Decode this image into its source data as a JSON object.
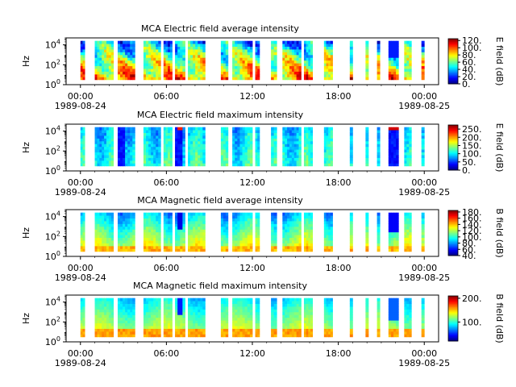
{
  "colormap_name": "jet",
  "chart_data": [
    {
      "type": "heatmap",
      "title": "MCA  Electric field average intensity",
      "ylabel": "Hz",
      "colorbar_label": "E field (dB)",
      "colorbar_ticks": [
        "120.",
        "100.",
        "80.",
        "60.",
        "40.",
        "20.",
        "0."
      ],
      "colorbar_range": [
        0,
        125
      ],
      "x_ticks": [
        {
          "time": "00:00",
          "date": "1989-08-24"
        },
        {
          "time": "06:00",
          "date": ""
        },
        {
          "time": "12:00",
          "date": ""
        },
        {
          "time": "18:00",
          "date": ""
        },
        {
          "time": "00:00",
          "date": "1989-08-25"
        }
      ],
      "xlim_hours": [
        -1,
        25
      ],
      "y_ticks": [
        "10^4",
        "10^2",
        "10^0"
      ],
      "ylim_log10": [
        0,
        4.7
      ],
      "data_band_log10": [
        0.5,
        4.4
      ],
      "style": "avg_e",
      "segments": [
        [
          0,
          0.3
        ],
        [
          1.0,
          2.3
        ],
        [
          2.6,
          3.8
        ],
        [
          4.4,
          5.6
        ],
        [
          5.8,
          6.4
        ],
        [
          6.6,
          7.3
        ],
        [
          7.5,
          8.7
        ],
        [
          9.8,
          10.3
        ],
        [
          10.6,
          12.0
        ],
        [
          12.2,
          12.5
        ],
        [
          13.3,
          13.7
        ],
        [
          14.1,
          15.4
        ],
        [
          15.6,
          16.2
        ],
        [
          17.0,
          17.6
        ],
        [
          18.8,
          19.0
        ],
        [
          19.9,
          20.1
        ],
        [
          20.7,
          20.9
        ],
        [
          21.5,
          22.2
        ],
        [
          22.6,
          23.1
        ],
        [
          23.8,
          24.0
        ]
      ]
    },
    {
      "type": "heatmap",
      "title": "MCA  Electric field maximum intensity",
      "ylabel": "Hz",
      "colorbar_label": "E field (dB)",
      "colorbar_ticks": [
        "250.",
        "200.",
        "150.",
        "100.",
        "50.",
        "0."
      ],
      "colorbar_range": [
        0,
        275
      ],
      "x_ticks": [
        {
          "time": "00:00",
          "date": "1989-08-24"
        },
        {
          "time": "06:00",
          "date": ""
        },
        {
          "time": "12:00",
          "date": ""
        },
        {
          "time": "18:00",
          "date": ""
        },
        {
          "time": "00:00",
          "date": "1989-08-25"
        }
      ],
      "xlim_hours": [
        -1,
        25
      ],
      "y_ticks": [
        "10^4",
        "10^2",
        "10^0"
      ],
      "ylim_log10": [
        0,
        4.7
      ],
      "data_band_log10": [
        0.5,
        4.4
      ],
      "style": "max_e",
      "segments": [
        [
          0,
          0.3
        ],
        [
          1.0,
          2.3
        ],
        [
          2.6,
          3.8
        ],
        [
          4.4,
          5.6
        ],
        [
          5.8,
          6.4
        ],
        [
          6.6,
          7.3
        ],
        [
          7.5,
          8.7
        ],
        [
          9.8,
          10.3
        ],
        [
          10.6,
          12.0
        ],
        [
          12.2,
          12.5
        ],
        [
          13.3,
          13.7
        ],
        [
          14.1,
          15.4
        ],
        [
          15.6,
          16.2
        ],
        [
          17.0,
          17.6
        ],
        [
          18.8,
          19.0
        ],
        [
          19.9,
          20.1
        ],
        [
          20.7,
          20.9
        ],
        [
          21.5,
          22.2
        ],
        [
          22.6,
          23.1
        ],
        [
          23.8,
          24.0
        ]
      ]
    },
    {
      "type": "heatmap",
      "title": "MCA  Magnetic field average intensity",
      "ylabel": "Hz",
      "colorbar_label": "B field (dB)",
      "colorbar_ticks": [
        "180.",
        "160.",
        "140.",
        "120.",
        "100.",
        "80.",
        "60.",
        "40."
      ],
      "colorbar_range": [
        40,
        185
      ],
      "x_ticks": [
        {
          "time": "00:00",
          "date": "1989-08-24"
        },
        {
          "time": "06:00",
          "date": ""
        },
        {
          "time": "12:00",
          "date": ""
        },
        {
          "time": "18:00",
          "date": ""
        },
        {
          "time": "00:00",
          "date": "1989-08-25"
        }
      ],
      "xlim_hours": [
        -1,
        25
      ],
      "y_ticks": [
        "10^4",
        "10^2",
        "10^0"
      ],
      "ylim_log10": [
        0,
        4.7
      ],
      "data_band_log10": [
        0.5,
        4.4
      ],
      "style": "avg_b",
      "segments": [
        [
          0,
          0.3
        ],
        [
          1.0,
          2.3
        ],
        [
          2.6,
          3.8
        ],
        [
          4.4,
          5.6
        ],
        [
          5.8,
          6.4
        ],
        [
          6.6,
          7.3
        ],
        [
          7.5,
          8.7
        ],
        [
          9.8,
          10.3
        ],
        [
          10.6,
          12.0
        ],
        [
          12.2,
          12.5
        ],
        [
          13.3,
          13.7
        ],
        [
          14.1,
          15.4
        ],
        [
          15.6,
          16.2
        ],
        [
          17.0,
          17.6
        ],
        [
          18.8,
          19.0
        ],
        [
          19.9,
          20.1
        ],
        [
          20.7,
          20.9
        ],
        [
          21.5,
          22.2
        ],
        [
          22.6,
          23.1
        ],
        [
          23.8,
          24.0
        ]
      ]
    },
    {
      "type": "heatmap",
      "title": "MCA  Magnetic field maximum intensity",
      "ylabel": "Hz",
      "colorbar_label": "B field (dB)",
      "colorbar_ticks": [
        "200.",
        "100."
      ],
      "colorbar_range": [
        20,
        210
      ],
      "x_ticks": [
        {
          "time": "00:00",
          "date": "1989-08-24"
        },
        {
          "time": "06:00",
          "date": ""
        },
        {
          "time": "12:00",
          "date": ""
        },
        {
          "time": "18:00",
          "date": ""
        },
        {
          "time": "00:00",
          "date": "1989-08-25"
        }
      ],
      "xlim_hours": [
        -1,
        25
      ],
      "y_ticks": [
        "10^4",
        "10^2",
        "10^0"
      ],
      "ylim_log10": [
        0,
        4.7
      ],
      "data_band_log10": [
        0.5,
        4.4
      ],
      "style": "max_b",
      "segments": [
        [
          0,
          0.3
        ],
        [
          1.0,
          2.3
        ],
        [
          2.6,
          3.8
        ],
        [
          4.4,
          5.6
        ],
        [
          5.8,
          6.4
        ],
        [
          6.6,
          7.3
        ],
        [
          7.5,
          8.7
        ],
        [
          9.8,
          10.3
        ],
        [
          10.6,
          12.0
        ],
        [
          12.2,
          12.5
        ],
        [
          13.3,
          13.7
        ],
        [
          14.1,
          15.4
        ],
        [
          15.6,
          16.2
        ],
        [
          17.0,
          17.6
        ],
        [
          18.8,
          19.0
        ],
        [
          19.9,
          20.1
        ],
        [
          20.7,
          20.9
        ],
        [
          21.5,
          22.2
        ],
        [
          22.6,
          23.1
        ],
        [
          23.8,
          24.0
        ]
      ]
    }
  ]
}
